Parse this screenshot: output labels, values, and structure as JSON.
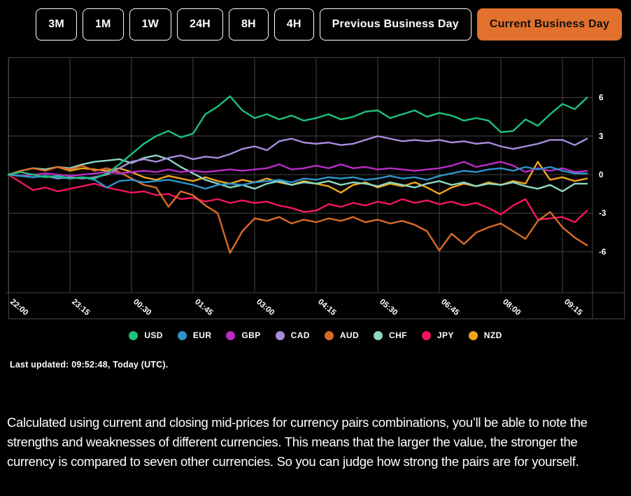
{
  "toolbar": {
    "buttons": [
      {
        "label": "3M",
        "active": false
      },
      {
        "label": "1M",
        "active": false
      },
      {
        "label": "1W",
        "active": false
      },
      {
        "label": "24H",
        "active": false
      },
      {
        "label": "8H",
        "active": false
      },
      {
        "label": "4H",
        "active": false
      },
      {
        "label": "Previous Business Day",
        "active": false
      },
      {
        "label": "Current Business Day",
        "active": true
      }
    ]
  },
  "chart_data": {
    "type": "line",
    "title": "",
    "xlabel": "",
    "ylabel": "",
    "x_ticks": [
      "22:00",
      "23:15",
      "00:30",
      "01:45",
      "03:00",
      "04:15",
      "05:30",
      "06:45",
      "08:00",
      "09:15"
    ],
    "points_per_tick": 5,
    "point_interval_minutes": 15,
    "y_ticks": [
      6,
      3,
      0,
      -3,
      -6
    ],
    "ylim": [
      -9.2,
      9.1
    ],
    "grid": true,
    "legend_position": "bottom",
    "series": [
      {
        "name": "USD",
        "color": "#1ec27d",
        "values": [
          0,
          0.2,
          0,
          -0.2,
          -0.1,
          -0.3,
          -0.2,
          -0.3,
          0.1,
          0.8,
          1.6,
          2.4,
          3.0,
          3.4,
          2.9,
          3.2,
          4.7,
          5.3,
          6.1,
          5.0,
          4.4,
          4.7,
          4.3,
          4.6,
          4.2,
          4.4,
          4.7,
          4.3,
          4.5,
          4.9,
          5.0,
          4.4,
          4.7,
          5.0,
          4.5,
          4.8,
          4.6,
          4.2,
          4.4,
          4.2,
          3.3,
          3.4,
          4.3,
          3.8,
          4.7,
          5.5,
          5.1,
          6.0
        ]
      },
      {
        "name": "EUR",
        "color": "#2e94c9",
        "values": [
          0,
          -0.1,
          -0.2,
          -0.1,
          -0.2,
          -0.3,
          -0.2,
          -0.4,
          -1.0,
          -0.5,
          -0.4,
          -0.6,
          -0.5,
          -0.4,
          -0.6,
          -0.8,
          -1.1,
          -0.8,
          -0.7,
          -0.8,
          -0.6,
          -0.5,
          -0.4,
          -0.6,
          -0.3,
          -0.4,
          -0.2,
          -0.3,
          -0.2,
          -0.4,
          -0.3,
          -0.1,
          -0.3,
          -0.2,
          -0.4,
          -0.1,
          0.1,
          0.3,
          0.2,
          0.4,
          0.5,
          0.3,
          0.6,
          0.4,
          0.6,
          0.3,
          0.1,
          0.1
        ]
      },
      {
        "name": "GBP",
        "color": "#b92dc4",
        "values": [
          0,
          -0.1,
          0,
          0.1,
          0,
          -0.1,
          0,
          0.1,
          0.2,
          0.1,
          0.2,
          0.3,
          0.2,
          0.4,
          0.2,
          0.3,
          0.2,
          0.3,
          0.4,
          0.3,
          0.4,
          0.5,
          0.8,
          0.4,
          0.5,
          0.7,
          0.5,
          0.8,
          0.5,
          0.6,
          0.4,
          0.5,
          0.4,
          0.3,
          0.4,
          0.5,
          0.7,
          1.0,
          0.6,
          0.8,
          1.0,
          0.7,
          0.2,
          0.5,
          0.3,
          0.5,
          0.2,
          0.3
        ]
      },
      {
        "name": "CAD",
        "color": "#a78ce0",
        "values": [
          0,
          -0.1,
          -0.2,
          -0.1,
          -0.3,
          -0.2,
          -0.3,
          -0.2,
          0,
          0.5,
          1.0,
          1.2,
          1.0,
          1.3,
          1.5,
          1.2,
          1.4,
          1.3,
          1.6,
          2.0,
          2.2,
          1.9,
          2.6,
          2.8,
          2.5,
          2.4,
          2.5,
          2.3,
          2.4,
          2.7,
          3.0,
          2.8,
          2.6,
          2.7,
          2.6,
          2.7,
          2.5,
          2.6,
          2.4,
          2.5,
          2.2,
          2.0,
          2.2,
          2.4,
          2.7,
          2.7,
          2.3,
          2.8
        ]
      },
      {
        "name": "AUD",
        "color": "#d96b28",
        "values": [
          0,
          0.3,
          0.5,
          0.3,
          0.6,
          0.4,
          0.7,
          0.3,
          0.5,
          0.2,
          -0.3,
          -0.8,
          -1.0,
          -2.5,
          -1.3,
          -1.6,
          -2.4,
          -3.0,
          -6.1,
          -4.4,
          -3.4,
          -3.6,
          -3.3,
          -3.8,
          -3.5,
          -3.7,
          -3.4,
          -3.6,
          -3.3,
          -3.7,
          -3.5,
          -3.8,
          -3.6,
          -3.9,
          -4.4,
          -5.9,
          -4.6,
          -5.4,
          -4.5,
          -4.1,
          -3.8,
          -4.4,
          -5.0,
          -3.6,
          -2.9,
          -4.1,
          -4.9,
          -5.5
        ]
      },
      {
        "name": "CHF",
        "color": "#8bd8c5",
        "values": [
          0,
          0.3,
          0.5,
          0.4,
          0.6,
          0.5,
          0.8,
          1.0,
          1.1,
          1.2,
          0.9,
          1.3,
          1.5,
          1.2,
          0.6,
          0.1,
          -0.4,
          -0.7,
          -1.0,
          -0.8,
          -1.1,
          -0.7,
          -0.5,
          -0.8,
          -0.6,
          -0.7,
          -0.5,
          -0.8,
          -0.6,
          -0.7,
          -0.9,
          -0.6,
          -0.8,
          -1.0,
          -0.7,
          -0.5,
          -0.8,
          -0.6,
          -0.9,
          -0.7,
          -0.8,
          -0.6,
          -0.9,
          -1.1,
          -0.8,
          -1.3,
          -0.7,
          -0.7
        ]
      },
      {
        "name": "JPY",
        "color": "#f3155c",
        "values": [
          0,
          -0.6,
          -1.2,
          -1.0,
          -1.3,
          -1.1,
          -0.9,
          -0.7,
          -1.0,
          -1.2,
          -1.4,
          -1.3,
          -1.6,
          -1.5,
          -1.9,
          -1.8,
          -2.1,
          -1.9,
          -2.2,
          -2.0,
          -2.2,
          -2.1,
          -2.4,
          -2.6,
          -2.9,
          -2.8,
          -2.3,
          -2.5,
          -2.2,
          -2.4,
          -2.1,
          -2.3,
          -1.9,
          -2.2,
          -2.0,
          -2.3,
          -2.1,
          -2.4,
          -2.2,
          -2.6,
          -3.1,
          -2.4,
          -1.9,
          -3.5,
          -3.4,
          -3.3,
          -3.7,
          -2.8
        ]
      },
      {
        "name": "NZD",
        "color": "#f2a51c",
        "values": [
          0,
          0.3,
          0.5,
          0.4,
          0.6,
          0.3,
          0.5,
          0.4,
          0.3,
          0.5,
          0.2,
          -0.2,
          -0.4,
          -0.1,
          -0.3,
          -0.5,
          -0.2,
          -0.5,
          -0.7,
          -0.4,
          -0.6,
          -0.3,
          -0.6,
          -0.8,
          -0.5,
          -0.7,
          -0.9,
          -1.4,
          -0.8,
          -0.6,
          -1.0,
          -0.7,
          -0.9,
          -0.6,
          -1.0,
          -1.5,
          -1.0,
          -0.7,
          -0.9,
          -0.6,
          -0.8,
          -0.5,
          -0.7,
          1.0,
          -0.4,
          -0.2,
          -0.5,
          -0.3
        ]
      }
    ]
  },
  "status": {
    "last_updated": "Last updated: 09:52:48, Today (UTC)."
  },
  "description": "Calculated using current and closing mid-prices for currency pairs combinations, you’ll be able to note the strengths and weaknesses of different currencies. This means that the larger the value, the stronger the currency is compared to seven other currencies. So you can judge how strong the pairs are for yourself.",
  "colors": {
    "accent": "#e2712e",
    "grid": "#454545",
    "background": "#000000",
    "text": "#ffffff"
  }
}
